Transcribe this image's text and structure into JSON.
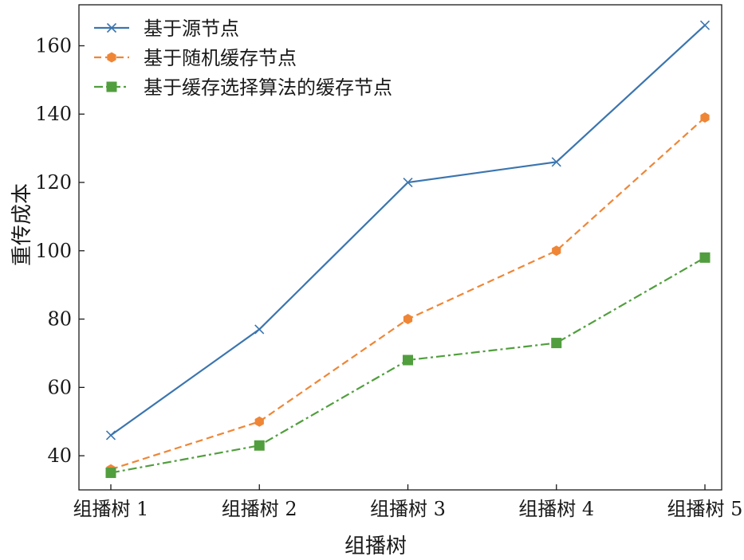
{
  "chart_data": {
    "type": "line",
    "title": "",
    "xlabel": "组播树",
    "ylabel": "重传成本",
    "categories": [
      "组播树 1",
      "组播树 2",
      "组播树 3",
      "组播树 4",
      "组播树 5"
    ],
    "ylim": [
      30,
      172
    ],
    "yticks": [
      40,
      60,
      80,
      100,
      120,
      140,
      160
    ],
    "grid": false,
    "legend_position": "top-left",
    "series": [
      {
        "name": "基于源节点",
        "values": [
          46,
          77,
          120,
          126,
          166
        ],
        "color": "#3b75af",
        "line_style": "solid",
        "marker": "x"
      },
      {
        "name": "基于随机缓存节点",
        "values": [
          36,
          50,
          80,
          100,
          139
        ],
        "color": "#ef8636",
        "line_style": "dashed",
        "marker": "hexagon"
      },
      {
        "name": "基于缓存选择算法的缓存节点",
        "values": [
          35,
          43,
          68,
          73,
          98
        ],
        "color": "#519e3e",
        "line_style": "dashdot",
        "marker": "square"
      }
    ]
  }
}
